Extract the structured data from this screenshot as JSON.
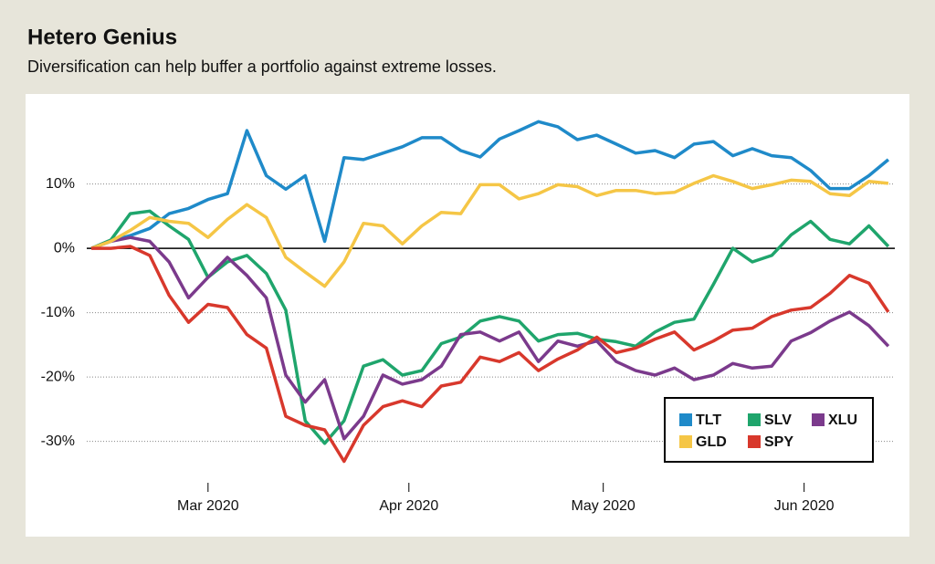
{
  "chart_data": {
    "type": "line",
    "title": "Hetero Genius",
    "subtitle": "Diversification can help buffer a portfolio against extreme losses.",
    "x": [
      43,
      46,
      49,
      52,
      55,
      58,
      61,
      64,
      67,
      70,
      73,
      76,
      79,
      82,
      85,
      88,
      91,
      94,
      97,
      100,
      103,
      106,
      109,
      112,
      115,
      118,
      121,
      124,
      127,
      130,
      133,
      136,
      139,
      142,
      145,
      148,
      151,
      154,
      157,
      160,
      163,
      166
    ],
    "xlim": [
      42,
      167
    ],
    "xticks": [
      {
        "value": 61,
        "label": "Mar 2020"
      },
      {
        "value": 92,
        "label": "Apr 2020"
      },
      {
        "value": 122,
        "label": "May 2020"
      },
      {
        "value": 153,
        "label": "Jun 2020"
      }
    ],
    "ylim": [
      -37,
      23
    ],
    "yticks": [
      {
        "value": -30,
        "label": "-30%"
      },
      {
        "value": -20,
        "label": "-20%"
      },
      {
        "value": -10,
        "label": "-10%"
      },
      {
        "value": 0,
        "label": "0%"
      },
      {
        "value": 10,
        "label": "10%"
      }
    ],
    "grid": true,
    "legend": "lower right",
    "series": [
      {
        "name": "TLT",
        "color": "#1f8ac9",
        "values": [
          0,
          1.1,
          2.0,
          3.1,
          5.4,
          6.2,
          7.6,
          8.5,
          18.3,
          11.3,
          9.2,
          11.3,
          1.1,
          14.1,
          13.8,
          14.8,
          15.8,
          17.2,
          17.2,
          15.2,
          14.2,
          17.0,
          18.3,
          19.7,
          18.9,
          16.9,
          17.6,
          16.2,
          14.8,
          15.2,
          14.1,
          16.2,
          16.6,
          14.4,
          15.5,
          14.4,
          14.1,
          12.1,
          9.3,
          9.3,
          11.3,
          13.8
        ]
      },
      {
        "name": "SLV",
        "color": "#1fa56c",
        "values": [
          0,
          1.3,
          5.4,
          5.8,
          3.5,
          1.4,
          -4.5,
          -2.1,
          -1.1,
          -3.9,
          -9.6,
          -26.8,
          -30.3,
          -26.8,
          -18.3,
          -17.3,
          -19.7,
          -19.0,
          -14.8,
          -13.8,
          -11.3,
          -10.6,
          -11.3,
          -14.4,
          -13.4,
          -13.2,
          -14.1,
          -14.5,
          -15.2,
          -13.0,
          -11.5,
          -11.0,
          -5.6,
          0,
          -2.1,
          -1.1,
          2.1,
          4.2,
          1.4,
          0.7,
          3.5,
          0.3
        ]
      },
      {
        "name": "XLU",
        "color": "#7b3a8c",
        "values": [
          0,
          1.1,
          1.7,
          1.1,
          -2.1,
          -7.7,
          -4.5,
          -1.4,
          -4.2,
          -7.7,
          -19.7,
          -23.9,
          -20.4,
          -29.6,
          -26.1,
          -19.7,
          -21.1,
          -20.4,
          -18.3,
          -13.4,
          -13.0,
          -14.4,
          -13.0,
          -17.6,
          -14.4,
          -15.2,
          -14.4,
          -17.6,
          -19.0,
          -19.7,
          -18.6,
          -20.4,
          -19.7,
          -17.9,
          -18.6,
          -18.3,
          -14.4,
          -13.1,
          -11.3,
          -9.9,
          -12.0,
          -15.2
        ]
      },
      {
        "name": "GLD",
        "color": "#f5c646",
        "values": [
          0,
          1.1,
          2.8,
          4.8,
          4.2,
          3.9,
          1.7,
          4.5,
          6.8,
          4.8,
          -1.4,
          -3.7,
          -5.9,
          -2.1,
          3.9,
          3.5,
          0.7,
          3.5,
          5.6,
          5.4,
          9.9,
          9.9,
          7.7,
          8.5,
          9.9,
          9.6,
          8.2,
          9.0,
          9.0,
          8.5,
          8.7,
          10.1,
          11.3,
          10.4,
          9.3,
          9.9,
          10.6,
          10.4,
          8.5,
          8.2,
          10.4,
          10.1
        ]
      },
      {
        "name": "SPY",
        "color": "#d8382c",
        "values": [
          0,
          0,
          0.3,
          -1.1,
          -7.3,
          -11.5,
          -8.7,
          -9.2,
          -13.4,
          -15.5,
          -26.1,
          -27.5,
          -28.2,
          -33.1,
          -27.5,
          -24.6,
          -23.7,
          -24.6,
          -21.4,
          -20.8,
          -16.9,
          -17.6,
          -16.2,
          -19.0,
          -17.2,
          -15.8,
          -13.8,
          -16.2,
          -15.5,
          -14.1,
          -13.0,
          -15.8,
          -14.4,
          -12.7,
          -12.4,
          -10.6,
          -9.6,
          -9.2,
          -7.0,
          -4.2,
          -5.4,
          -9.9
        ]
      }
    ]
  }
}
